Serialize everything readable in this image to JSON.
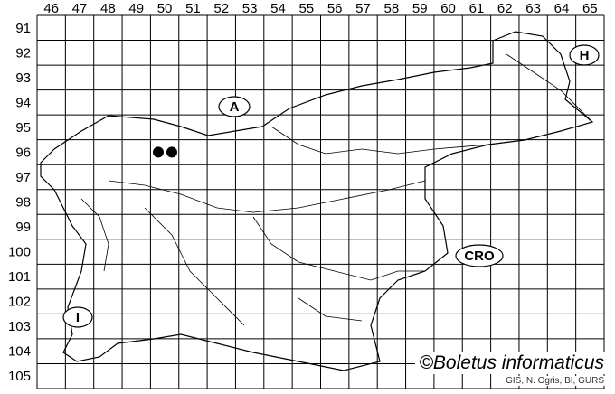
{
  "columns": [
    "46",
    "47",
    "48",
    "49",
    "50",
    "51",
    "52",
    "53",
    "54",
    "55",
    "56",
    "57",
    "58",
    "59",
    "60",
    "61",
    "62",
    "63",
    "64",
    "65"
  ],
  "rows": [
    "91",
    "92",
    "93",
    "94",
    "95",
    "96",
    "97",
    "98",
    "99",
    "100",
    "101",
    "102",
    "103",
    "104",
    "105"
  ],
  "country_labels": [
    {
      "id": "austria",
      "text": "A"
    },
    {
      "id": "hungary",
      "text": "H"
    },
    {
      "id": "croatia",
      "text": "CRO"
    },
    {
      "id": "italy",
      "text": "I"
    }
  ],
  "records": [
    {
      "column": "49",
      "row": "96"
    },
    {
      "column": "50",
      "row": "96"
    }
  ],
  "credit": "©Boletus informaticus",
  "source": "GIS, N. Ogris, BI, GURS",
  "colors": {
    "lines": "#000000",
    "background": "#ffffff",
    "points": "#000000"
  }
}
